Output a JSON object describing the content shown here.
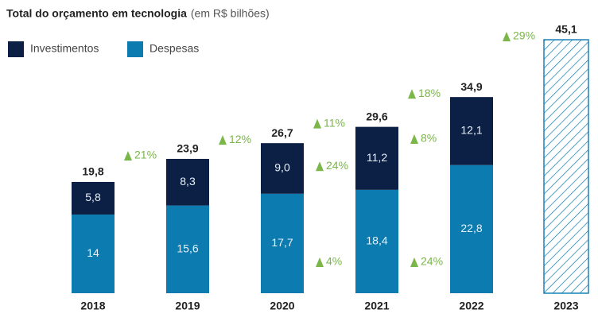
{
  "chart_data": {
    "type": "stacked-bar",
    "title": "Total do orçamento em tecnologia",
    "subtitle": "(em R$ bilhões)",
    "categories": [
      "2018",
      "2019",
      "2020",
      "2021",
      "2022",
      "2023"
    ],
    "series": [
      {
        "name": "Investimentos",
        "color": "#0c1f45",
        "values": [
          5.8,
          8.3,
          9.0,
          11.2,
          12.1,
          null
        ],
        "value_labels": [
          "5,8",
          "8,3",
          "9,0",
          "11,2",
          "12,1",
          null
        ],
        "growth": {
          "values": [
            null,
            null,
            null,
            24,
            8,
            null
          ],
          "value_labels": [
            null,
            null,
            null,
            "24%",
            "8%",
            null
          ]
        }
      },
      {
        "name": "Despesas",
        "color": "#0b7bb0",
        "values": [
          14,
          15.6,
          17.7,
          18.4,
          22.8,
          null
        ],
        "value_labels": [
          "14",
          "15,6",
          "17,7",
          "18,4",
          "22,8",
          null
        ],
        "growth": {
          "values": [
            null,
            null,
            null,
            4,
            24,
            null
          ],
          "value_labels": [
            null,
            null,
            null,
            "4%",
            "24%",
            null
          ]
        }
      }
    ],
    "totals": {
      "color": "#1a82b5",
      "values": [
        19.8,
        23.9,
        26.7,
        29.6,
        34.9,
        45.1
      ],
      "value_labels": [
        "19,8",
        "23,9",
        "26,7",
        "29,6",
        "34,9",
        "45,1"
      ],
      "growth": {
        "values": [
          null,
          21,
          12,
          11,
          18,
          29
        ],
        "value_labels": [
          null,
          "21%",
          "12%",
          "11%",
          "18%",
          "29%"
        ]
      }
    },
    "growth_color": "#7ab648"
  }
}
